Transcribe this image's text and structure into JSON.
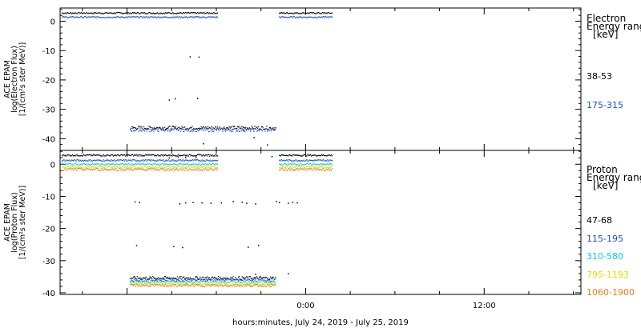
{
  "chart_data": [
    {
      "type": "scatter",
      "ylabel": [
        "ACE EPAM",
        "log(Electron Flux)",
        "[1/(cm²s ster MeV)]"
      ],
      "ylim": [
        -44,
        4.5
      ],
      "yticks": [
        0,
        -10,
        -20,
        -30,
        -40
      ],
      "legend": {
        "placement": "right",
        "title": [
          "Electron",
          "Energy range",
          "[keV]"
        ],
        "entries": [
          "38-53",
          "175-315"
        ]
      },
      "series": [
        {
          "name": "38-53",
          "color": "#000000",
          "segments": [
            {
              "x": [
                -17.2,
                -5.9
              ],
              "y": 2.8,
              "noise": 0.25
            },
            {
              "x": [
                -1.8,
                1.8
              ],
              "y": 2.8,
              "noise": 0.25
            },
            {
              "x": [
                -11.8,
                -2.0
              ],
              "y": -36.3,
              "noise": 0.6
            }
          ],
          "points": [
            {
              "x": -7.8,
              "y": -12.1
            },
            {
              "x": -7.2,
              "y": -12.2
            },
            {
              "x": -9.2,
              "y": -26.8
            },
            {
              "x": -8.8,
              "y": -26.4
            },
            {
              "x": -7.3,
              "y": -26.3
            },
            {
              "x": -4.2,
              "y": -36.9
            },
            {
              "x": -3.5,
              "y": -39.6
            },
            {
              "x": -2.6,
              "y": -42.1
            },
            {
              "x": -6.9,
              "y": -41.7
            }
          ]
        },
        {
          "name": "175-315",
          "color": "#1d4fd8",
          "segments": [
            {
              "x": [
                -17.2,
                -5.9
              ],
              "y": 1.4,
              "noise": 0.25
            },
            {
              "x": [
                -1.8,
                1.8
              ],
              "y": 1.4,
              "noise": 0.25
            },
            {
              "x": [
                -11.8,
                -2.0
              ],
              "y": -37.0,
              "noise": 0.6
            }
          ],
          "points": []
        }
      ]
    },
    {
      "type": "scatter",
      "ylabel": [
        "ACE EPAM",
        "log(Proton Flux)",
        "[1/(cm²s ster MeV)]"
      ],
      "ylim": [
        -40.5,
        4.3
      ],
      "yticks": [
        0,
        -10,
        -20,
        -30,
        -40
      ],
      "xlabel": "hours:minutes, July 24, 2019 - July 25, 2019",
      "xticks": [
        {
          "x": 0,
          "label": "0:00"
        },
        {
          "x": 12,
          "label": "12:00"
        }
      ],
      "xlim": [
        -16.5,
        18.5
      ],
      "legend": {
        "placement": "right",
        "title": [
          "Proton",
          "Energy range",
          "[keV]"
        ],
        "entries": [
          "47-68",
          "115-195",
          "310-580",
          "795-1193",
          "1060-1900"
        ]
      },
      "series": [
        {
          "name": "47-68",
          "color": "#000000",
          "segments": [
            {
              "x": [
                -17.2,
                -5.9
              ],
              "y": 2.8,
              "noise": 0.25
            },
            {
              "x": [
                -1.8,
                1.8
              ],
              "y": 2.8,
              "noise": 0.25
            },
            {
              "x": [
                -11.8,
                -2.0
              ],
              "y": -35.4,
              "noise": 0.5
            }
          ],
          "points": [
            {
              "x": -9.2,
              "y": 2.0
            },
            {
              "x": -8.6,
              "y": 2.3
            },
            {
              "x": -8.1,
              "y": 2.1
            },
            {
              "x": -7.4,
              "y": 2.2
            },
            {
              "x": -2.3,
              "y": 2.4
            },
            {
              "x": -11.5,
              "y": -11.7
            },
            {
              "x": -11.2,
              "y": -11.9
            },
            {
              "x": -8.5,
              "y": -12.3
            },
            {
              "x": -8.1,
              "y": -12.0
            },
            {
              "x": -7.6,
              "y": -11.9
            },
            {
              "x": -7.0,
              "y": -12.0
            },
            {
              "x": -6.4,
              "y": -12.1
            },
            {
              "x": -5.7,
              "y": -12.0
            },
            {
              "x": -4.9,
              "y": -11.6
            },
            {
              "x": -4.3,
              "y": -11.8
            },
            {
              "x": -4.0,
              "y": -12.1
            },
            {
              "x": -3.4,
              "y": -12.3
            },
            {
              "x": -2.0,
              "y": -11.6
            },
            {
              "x": -1.8,
              "y": -11.9
            },
            {
              "x": -1.2,
              "y": -12.1
            },
            {
              "x": -0.9,
              "y": -11.8
            },
            {
              "x": -0.6,
              "y": -12.0
            },
            {
              "x": -11.4,
              "y": -25.3
            },
            {
              "x": -8.9,
              "y": -25.6
            },
            {
              "x": -8.3,
              "y": -25.9
            },
            {
              "x": -3.9,
              "y": -25.8
            },
            {
              "x": -3.2,
              "y": -25.2
            },
            {
              "x": -3.4,
              "y": -34.2
            },
            {
              "x": -1.2,
              "y": -34.0
            }
          ]
        },
        {
          "name": "115-195",
          "color": "#1d4fd8",
          "segments": [
            {
              "x": [
                -17.2,
                -5.9
              ],
              "y": 1.2,
              "noise": 0.25
            },
            {
              "x": [
                -1.8,
                1.8
              ],
              "y": 1.2,
              "noise": 0.25
            },
            {
              "x": [
                -11.8,
                -2.0
              ],
              "y": -36.0,
              "noise": 0.4
            }
          ],
          "points": []
        },
        {
          "name": "310-580",
          "color": "#00d0e0",
          "segments": [
            {
              "x": [
                -17.2,
                -5.9
              ],
              "y": 0.0,
              "noise": 0.25
            },
            {
              "x": [
                -1.8,
                1.8
              ],
              "y": 0.0,
              "noise": 0.25
            },
            {
              "x": [
                -11.8,
                -2.0
              ],
              "y": -36.6,
              "noise": 0.4
            }
          ],
          "points": []
        },
        {
          "name": "795-1193",
          "color": "#e0e000",
          "segments": [
            {
              "x": [
                -17.2,
                -5.9
              ],
              "y": -0.9,
              "noise": 0.3
            },
            {
              "x": [
                -1.8,
                1.8
              ],
              "y": -0.9,
              "noise": 0.3
            },
            {
              "x": [
                -11.8,
                -2.0
              ],
              "y": -37.2,
              "noise": 0.4
            }
          ],
          "points": []
        },
        {
          "name": "1060-1900",
          "color": "#f07a10",
          "segments": [
            {
              "x": [
                -17.2,
                -5.9
              ],
              "y": -1.6,
              "noise": 0.4
            },
            {
              "x": [
                -1.8,
                1.8
              ],
              "y": -1.6,
              "noise": 0.4
            },
            {
              "x": [
                -11.8,
                -2.0
              ],
              "y": -37.7,
              "noise": 0.4
            }
          ],
          "points": []
        }
      ]
    }
  ]
}
